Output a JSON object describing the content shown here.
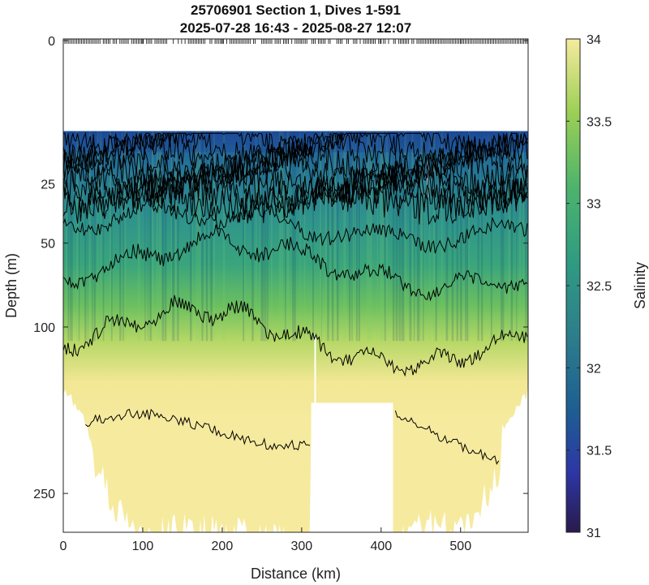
{
  "chart_data": {
    "type": "heatmap",
    "title": "25706901 Section 1, Dives 1-591",
    "subtitle": "2025-07-28 16:43 - 2025-08-27 12:07",
    "xlabel": "Distance (km)",
    "ylabel": "Depth (m)",
    "colorbar_label": "Salinity",
    "xlim": [
      0,
      585
    ],
    "x_ticks": [
      0,
      100,
      200,
      300,
      400,
      500
    ],
    "y_scale": "sqrt",
    "y_ticks": [
      0,
      25,
      50,
      100,
      250
    ],
    "ylim_reversed": [
      0,
      320
    ],
    "colorbar_range": [
      31,
      34
    ],
    "colorbar_ticks": [
      31,
      31.5,
      32,
      32.5,
      33,
      33.5,
      34
    ],
    "colormap": "haline",
    "data_gap_top_depth_m": 10,
    "contours": [
      {
        "level": "upper",
        "depth_m": 40
      },
      {
        "level": "mid",
        "depth_m": 62
      },
      {
        "level": "deep",
        "depth_m": 108
      },
      {
        "level": "bottom",
        "depth_m": 180
      }
    ],
    "max_depth_profile": {
      "x": [
        25,
        40,
        60,
        100,
        150,
        200,
        250,
        300,
        312,
        415,
        450,
        500,
        550
      ],
      "depth": [
        170,
        215,
        255,
        300,
        290,
        295,
        300,
        305,
        300,
        305,
        285,
        290,
        230
      ]
    },
    "shallow_gap": {
      "x": [
        312,
        415
      ],
      "depth": 160
    }
  }
}
